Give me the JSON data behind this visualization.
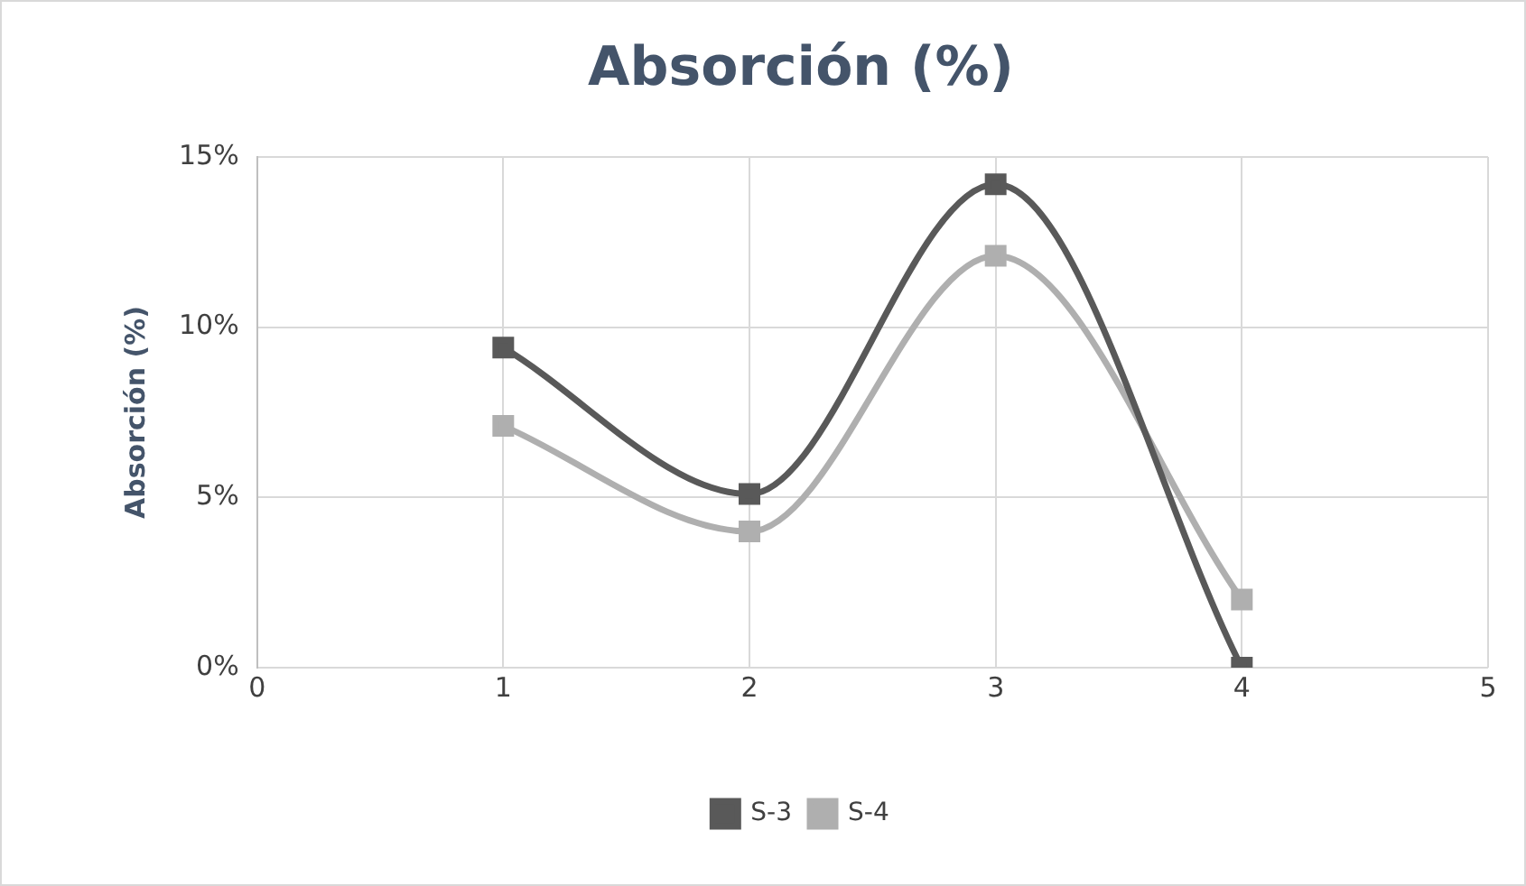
{
  "chart_data": {
    "type": "line",
    "title": "Absorción (%)",
    "ylabel": "Absorción (%)",
    "x": [
      1,
      2,
      3,
      4
    ],
    "series": [
      {
        "name": "S-3",
        "color": "#595959",
        "values": [
          9.4,
          5.1,
          14.2,
          0
        ]
      },
      {
        "name": "S-4",
        "color": "#afafaf",
        "values": [
          7.1,
          4.0,
          12.1,
          2.0
        ]
      }
    ],
    "xlim": [
      0,
      5
    ],
    "xticks": [
      0,
      1,
      2,
      3,
      4,
      5
    ],
    "ylim": [
      0,
      15
    ],
    "yticks": [
      {
        "value": 0,
        "label": "0%"
      },
      {
        "value": 5,
        "label": "5%"
      },
      {
        "value": 10,
        "label": "10%"
      },
      {
        "value": 15,
        "label": "15%"
      }
    ],
    "grid": true,
    "legend": "bottom",
    "marker": "square",
    "line_style": "solid"
  }
}
